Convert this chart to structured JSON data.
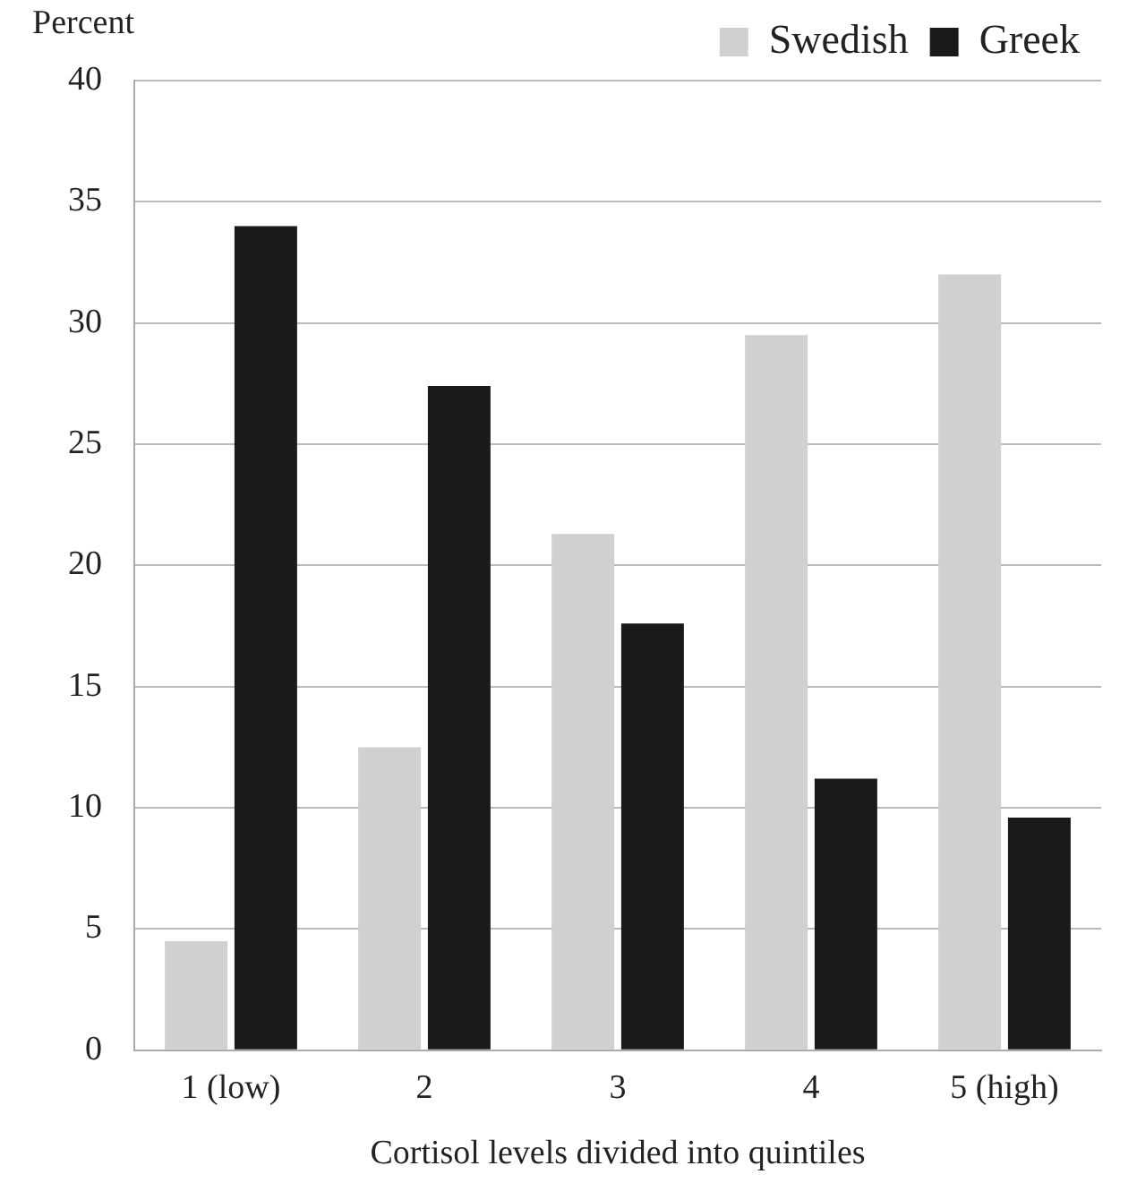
{
  "chart_data": {
    "type": "bar",
    "ylabel": "Percent",
    "xlabel": "Cortisol levels divided into quintiles",
    "categories": [
      "1 (low)",
      "2",
      "3",
      "4",
      "5 (high)"
    ],
    "series": [
      {
        "name": "Swedish",
        "color": "#d0d0d0",
        "values": [
          4.5,
          12.5,
          21.3,
          29.5,
          32
        ]
      },
      {
        "name": "Greek",
        "color": "#1a1a1a",
        "values": [
          34,
          27.4,
          17.6,
          11.2,
          9.6
        ]
      }
    ],
    "ylim": [
      0,
      40
    ],
    "yticks": [
      0,
      5,
      10,
      15,
      20,
      25,
      30,
      35,
      40
    ],
    "grid": "y",
    "legend": "top right"
  }
}
